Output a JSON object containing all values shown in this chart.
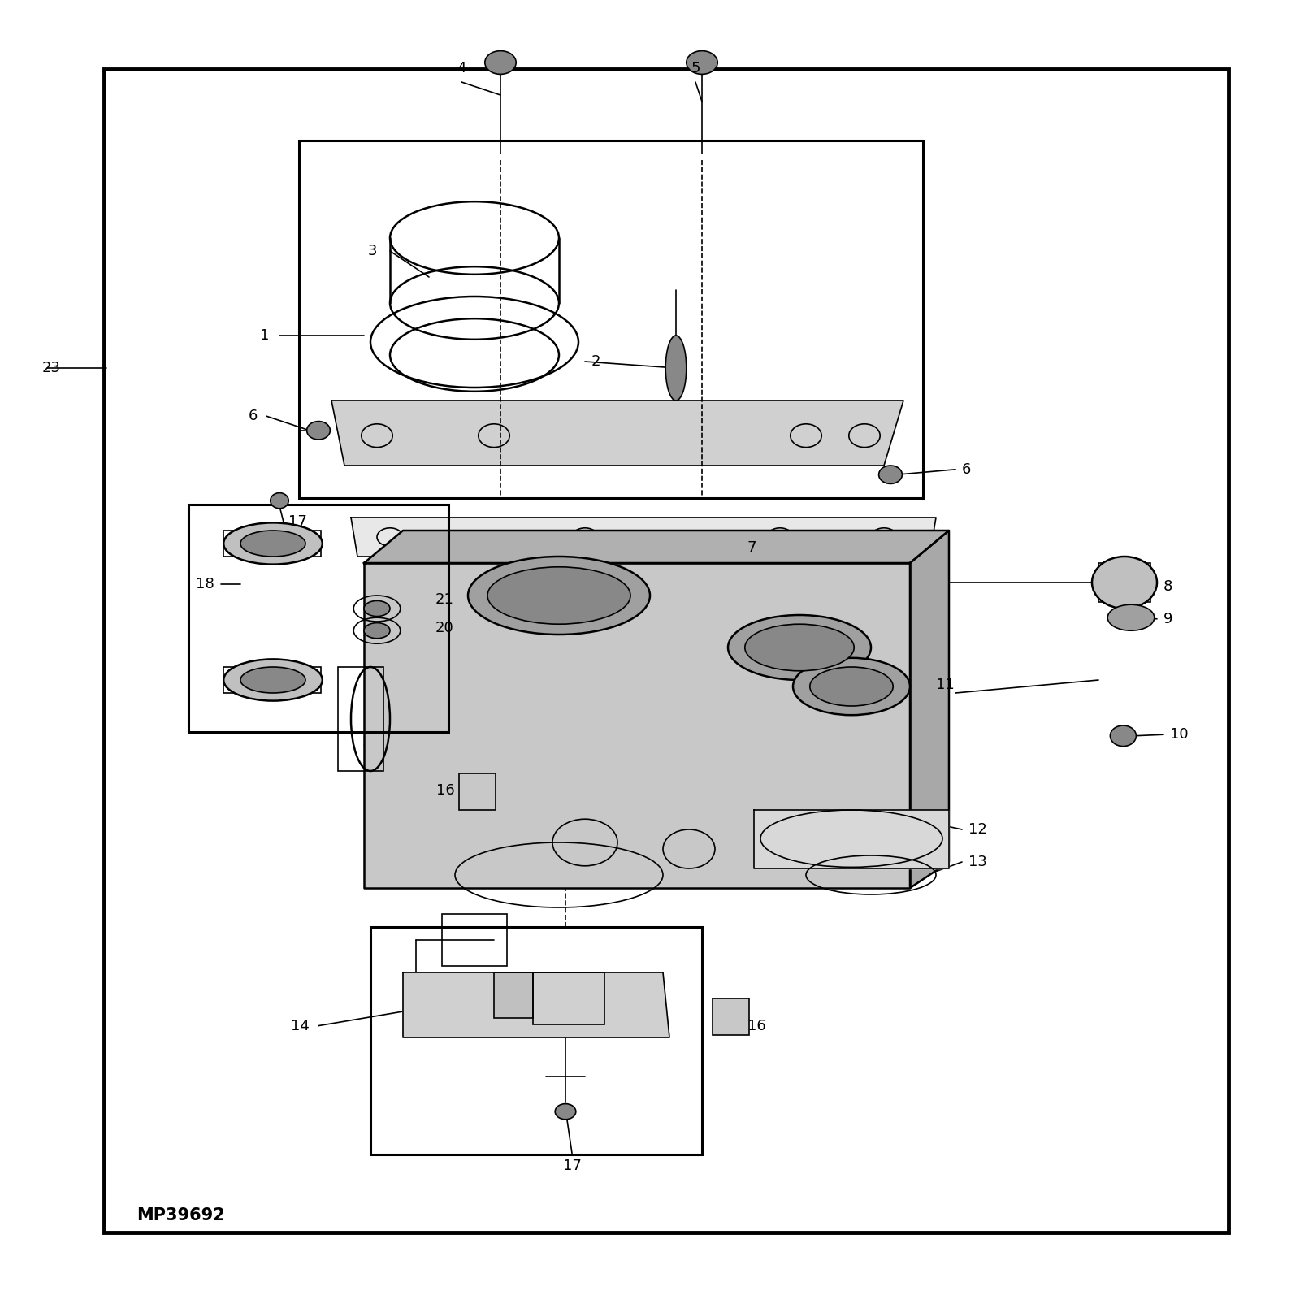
{
  "bg_color": "#ffffff",
  "line_color": "#000000",
  "fig_width": 16.0,
  "fig_height": 16.1,
  "part_label": "MP39692",
  "labels_fs": 13,
  "bold_label_fs": 15
}
